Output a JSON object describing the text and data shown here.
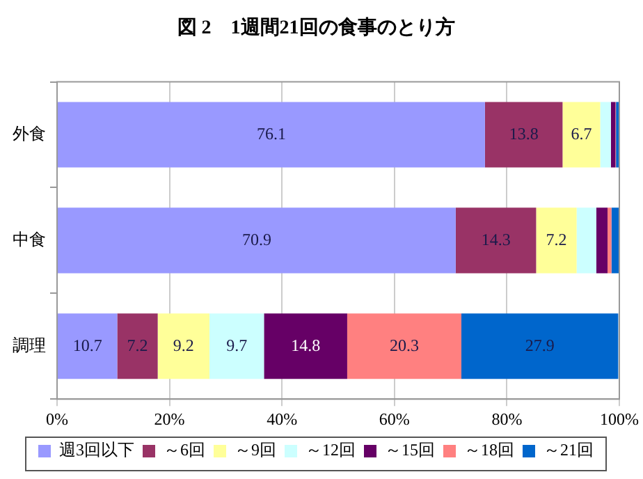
{
  "chart_data": {
    "type": "bar",
    "orientation": "horizontal",
    "stacked": true,
    "title": "図 2　1週間21回の食事のとり方",
    "categories": [
      "外食",
      "中食",
      "調理"
    ],
    "series": [
      {
        "name": "週3回以下",
        "color": "#9999ff",
        "values": [
          76.1,
          70.9,
          10.7
        ],
        "value_labels": [
          "76.1",
          "70.9",
          "10.7"
        ]
      },
      {
        "name": "～6回",
        "color": "#993366",
        "values": [
          13.8,
          14.3,
          7.2
        ],
        "value_labels": [
          "13.8",
          "14.3",
          "7.2"
        ]
      },
      {
        "name": "～9回",
        "color": "#ffff99",
        "values": [
          6.7,
          7.2,
          9.2
        ],
        "value_labels": [
          "6.7",
          "7.2",
          "9.2"
        ]
      },
      {
        "name": "～12回",
        "color": "#ccffff",
        "values": [
          1.9,
          3.5,
          9.7
        ],
        "value_labels": [
          null,
          null,
          "9.7"
        ]
      },
      {
        "name": "～15回",
        "color": "#660066",
        "values": [
          0.8,
          2.0,
          14.8
        ],
        "value_labels": [
          null,
          null,
          "14.8"
        ]
      },
      {
        "name": "～18回",
        "color": "#ff8080",
        "values": [
          0.1,
          0.7,
          20.3
        ],
        "value_labels": [
          null,
          null,
          "20.3"
        ]
      },
      {
        "name": "～21回",
        "color": "#0066cc",
        "values": [
          0.6,
          1.4,
          27.9
        ],
        "value_labels": [
          null,
          null,
          "27.9"
        ]
      }
    ],
    "xlim": [
      0,
      100
    ],
    "xticks": [
      {
        "value": 0,
        "label": "0%"
      },
      {
        "value": 20,
        "label": "20%"
      },
      {
        "value": 40,
        "label": "40%"
      },
      {
        "value": 60,
        "label": "60%"
      },
      {
        "value": 80,
        "label": "80%"
      },
      {
        "value": 100,
        "label": "100%"
      }
    ],
    "grid": "x",
    "legend": "bottom"
  }
}
